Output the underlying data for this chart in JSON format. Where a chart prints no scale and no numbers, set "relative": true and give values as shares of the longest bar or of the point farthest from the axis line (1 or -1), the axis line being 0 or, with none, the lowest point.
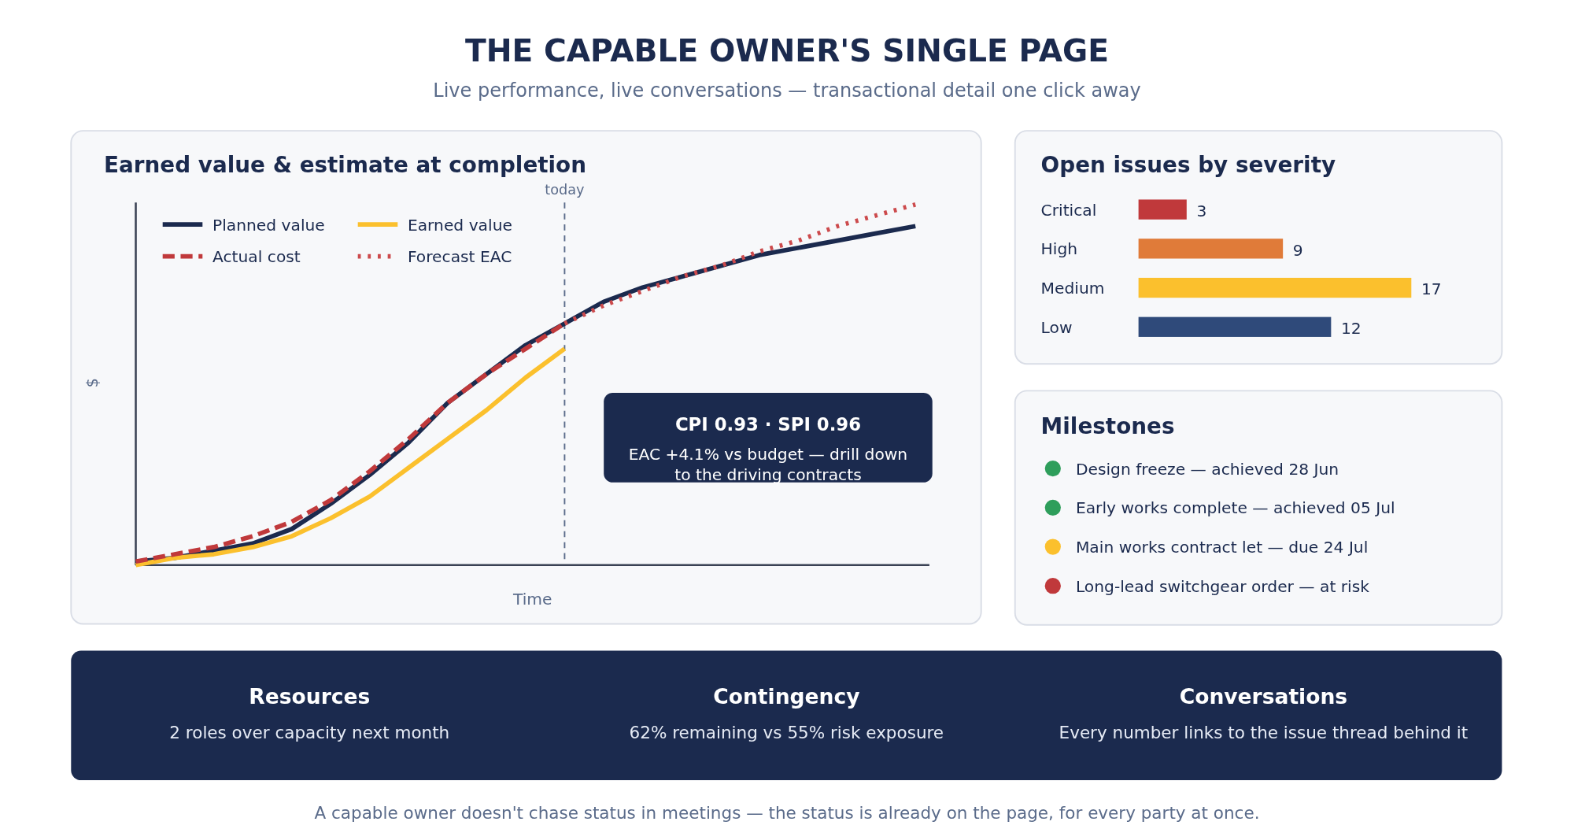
{
  "chart_data": [
    {
      "type": "other",
      "title": "THE CAPABLE OWNER'S SINGLE PAGE",
      "subtitle": "Live performance, live conversations — transactional detail one click away"
    },
    {
      "type": "line",
      "title": "Earned value & estimate at completion",
      "xlabel": "Time",
      "ylabel": "$",
      "relative": true,
      "legend": "top left",
      "categories": [
        null,
        null,
        null,
        null,
        null,
        null,
        null,
        null,
        null,
        null,
        null,
        null,
        null,
        null,
        null,
        null,
        null,
        null,
        null,
        null,
        null
      ],
      "series": [
        {
          "name": "Planned value",
          "color": "#1b2a4e",
          "line_style": "solid",
          "values": [
            0.01,
            0.02,
            0.04,
            0.06,
            0.1,
            0.17,
            0.25,
            0.34,
            0.45,
            0.53,
            0.61,
            0.67,
            0.73,
            0.77,
            0.8,
            0.83,
            0.86,
            0.88,
            0.9,
            0.92,
            0.94
          ]
        },
        {
          "name": "Earned value",
          "color": "#fbc02d",
          "line_style": "solid",
          "values": [
            0.0,
            0.02,
            0.03,
            0.05,
            0.08,
            0.13,
            0.19,
            0.27,
            0.35,
            0.43,
            0.52,
            0.6,
            null,
            null,
            null,
            null,
            null,
            null,
            null,
            null,
            null
          ]
        },
        {
          "name": "Actual cost",
          "color": "#c0393b",
          "line_style": "dashed",
          "values": [
            0.01,
            0.03,
            0.05,
            0.08,
            0.12,
            0.18,
            0.26,
            0.35,
            0.45,
            0.53,
            0.6,
            0.67,
            null,
            null,
            null,
            null,
            null,
            null,
            null,
            null,
            null
          ]
        },
        {
          "name": "Forecast EAC",
          "color": "#cc4a4c",
          "line_style": "dotted",
          "values": [
            null,
            null,
            null,
            null,
            null,
            null,
            null,
            null,
            null,
            null,
            null,
            0.67,
            0.72,
            0.76,
            0.8,
            0.83,
            0.87,
            0.9,
            0.94,
            0.97,
            1.0
          ]
        }
      ],
      "annotations": [
        "today",
        "CPI 0.93 · SPI 0.96",
        "EAC +4.1% vs budget — drill down to the driving contracts"
      ]
    },
    {
      "type": "bar",
      "title": "Open issues by severity",
      "orientation": "horizontal",
      "data_labels": true,
      "categories": [
        "Critical",
        "High",
        "Medium",
        "Low"
      ],
      "values": [
        3,
        9,
        17,
        12
      ],
      "colors": [
        "#c0393b",
        "#e07b39",
        "#fbc02d",
        "#2f4a7a"
      ]
    },
    {
      "type": "other",
      "title": "Milestones",
      "categories": [
        "Design freeze — achieved 28 Jun",
        "Early works complete — achieved 05 Jul",
        "Main works contract let — due 24 Jul",
        "Long-lead switchgear order — at risk"
      ],
      "colors": [
        "#2e9e5b",
        "#2e9e5b",
        "#fbc02d",
        "#c0393b"
      ]
    },
    {
      "type": "other",
      "categories": [
        "Resources",
        "Contingency",
        "Conversations"
      ],
      "annotations": [
        "2 roles over capacity next month",
        "62% remaining vs 55% risk exposure",
        "Every number links to the issue thread behind it",
        "A capable owner doesn't chase status in meetings — the status is already on the page, for every party at once."
      ]
    }
  ]
}
